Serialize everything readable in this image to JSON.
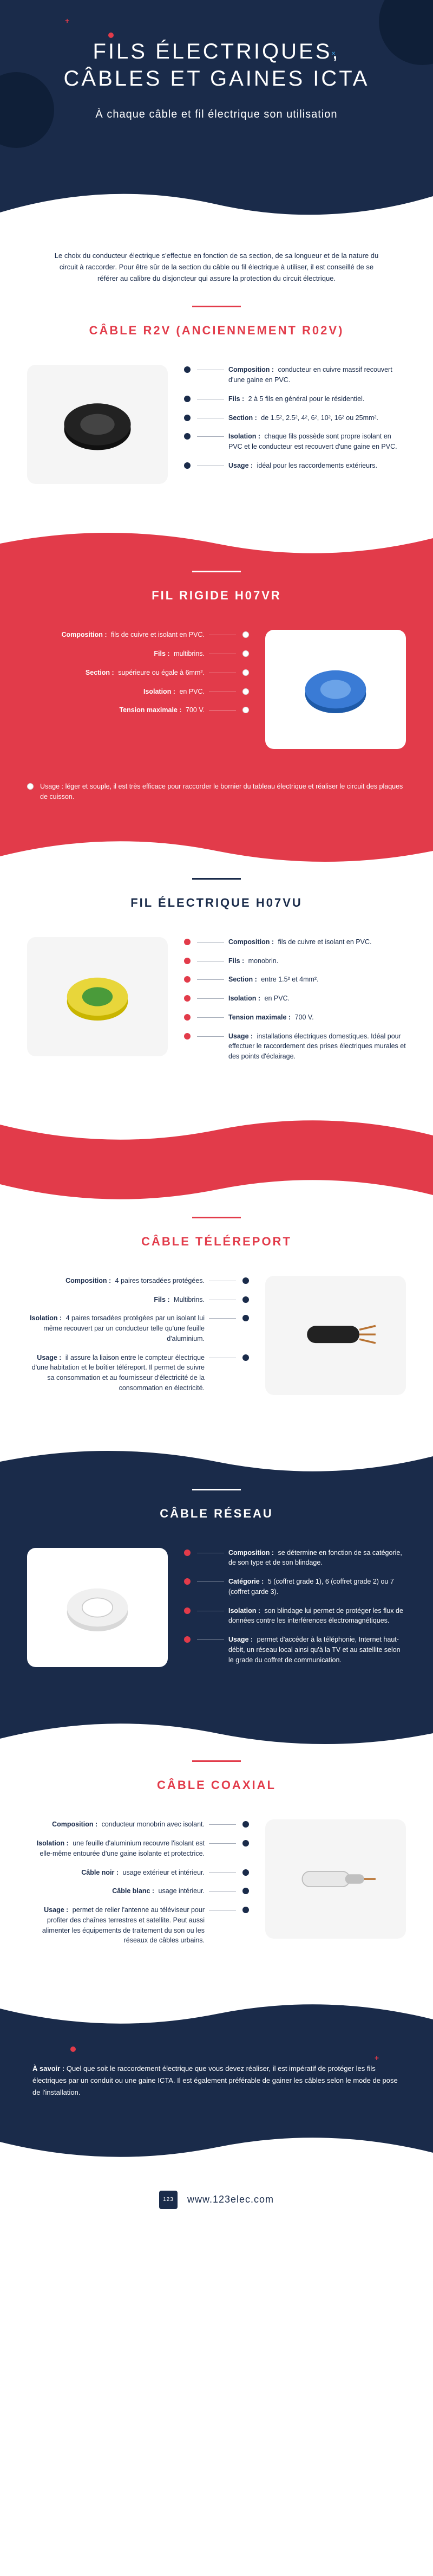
{
  "colors": {
    "darkblue": "#1a2b4a",
    "red": "#e23b4a",
    "lightblue": "#3aa0e8",
    "white": "#ffffff",
    "bg_light": "#f5f5f5"
  },
  "hero": {
    "title_line1": "FILS ÉLECTRIQUES,",
    "title_line2": "CÂBLES ET GAINES ICTA",
    "subtitle": "À chaque câble et fil électrique son utilisation"
  },
  "intro": "Le choix du conducteur électrique s'effectue en fonction de sa section, de sa longueur et de la nature du circuit à raccorder. Pour être sûr de la section du câble ou fil électrique à utiliser, il est conseillé de se référer au calibre du disjoncteur qui assure la protection du circuit électrique.",
  "cables": {
    "r2v": {
      "title": "CÂBLE R2V (ANCIENNEMENT R02V)",
      "image_alt": "cable-noir-r2v",
      "specs": [
        {
          "label": "Composition :",
          "text": "conducteur en cuivre massif recouvert d'une gaine en PVC."
        },
        {
          "label": "Fils :",
          "text": "2 à 5 fils en général pour le résidentiel."
        },
        {
          "label": "Section :",
          "text": "de 1.5², 2.5², 4², 6², 10², 16² ou 25mm²."
        },
        {
          "label": "Isolation :",
          "text": "chaque fils possède sont propre isolant en PVC et le conducteur est recouvert d'une gaine en PVC."
        },
        {
          "label": "Usage :",
          "text": "idéal pour les raccordements extérieurs."
        }
      ]
    },
    "h07vr": {
      "title": "FIL RIGIDE H07VR",
      "image_alt": "fil-bleu-h07vr",
      "specs": [
        {
          "label": "Composition :",
          "text": "fils de cuivre et isolant en PVC."
        },
        {
          "label": "Fils :",
          "text": "multibrins."
        },
        {
          "label": "Section :",
          "text": "supérieure ou égale à 6mm²."
        },
        {
          "label": "Isolation :",
          "text": "en PVC."
        },
        {
          "label": "Tension maximale :",
          "text": "700 V."
        }
      ],
      "usage": {
        "label": "Usage :",
        "text": "léger et souple, il est très efficace pour raccorder le bornier du tableau électrique et réaliser le circuit des plaques de cuisson."
      }
    },
    "h07vu": {
      "title": "FIL ÉLECTRIQUE H07VU",
      "image_alt": "fil-jaune-vert-h07vu",
      "specs": [
        {
          "label": "Composition :",
          "text": "fils de cuivre et isolant en PVC."
        },
        {
          "label": "Fils :",
          "text": "monobrin."
        },
        {
          "label": "Section :",
          "text": "entre 1.5² et 4mm²."
        },
        {
          "label": "Isolation :",
          "text": "en PVC."
        },
        {
          "label": "Tension maximale :",
          "text": "700 V."
        },
        {
          "label": "Usage :",
          "text": "installations électriques domestiques. Idéal pour effectuer le raccordement des prises électriques murales et des points d'éclairage."
        }
      ]
    },
    "telereport": {
      "title": "CÂBLE TÉLÉREPORT",
      "image_alt": "cable-telereport",
      "specs": [
        {
          "label": "Composition :",
          "text": "4 paires torsadées protégées."
        },
        {
          "label": "Fils :",
          "text": "Multibrins."
        },
        {
          "label": "Isolation :",
          "text": "4 paires torsadées protégées par un isolant lui même recouvert par un conducteur telle qu'une feuille d'aluminium."
        },
        {
          "label": "Usage :",
          "text": "il assure la liaison entre le compteur électrique d'une habitation et le boîtier téléreport. Il permet de suivre sa consommation et au fournisseur d'électricité de la consommation en électricité."
        }
      ]
    },
    "reseau": {
      "title": "CÂBLE RÉSEAU",
      "image_alt": "cable-reseau-blanc",
      "specs": [
        {
          "label": "Composition :",
          "text": "se détermine en fonction de sa catégorie, de son type et de son blindage."
        },
        {
          "label": "Catégorie :",
          "text": "5 (coffret grade 1), 6 (coffret grade 2) ou 7 (coffret garde 3)."
        },
        {
          "label": "Isolation :",
          "text": "son blindage lui permet de protéger les flux de données contre les interférences électromagnétiques."
        },
        {
          "label": "Usage :",
          "text": "permet d'accéder à la téléphonie, Internet haut-débit, un réseau local ainsi qu'à la TV et au satellite selon le grade du coffret de communication."
        }
      ]
    },
    "coaxial": {
      "title": "CÂBLE COAXIAL",
      "image_alt": "cable-coaxial",
      "specs": [
        {
          "label": "Composition :",
          "text": "conducteur monobrin avec isolant."
        },
        {
          "label": "Isolation :",
          "text": "une feuille d'aluminium recouvre l'isolant est elle-même entourée d'une gaine isolante et protectrice."
        },
        {
          "label": "Câble noir :",
          "text": "usage extérieur et intérieur."
        },
        {
          "label": "Câble blanc :",
          "text": "usage intérieur."
        },
        {
          "label": "Usage :",
          "text": "permet de relier l'antenne au téléviseur pour profiter des chaînes terrestres et satellite. Peut aussi alimenter les équipements de traitement du son ou les réseaux de câbles urbains."
        }
      ]
    }
  },
  "footer": {
    "label": "À savoir :",
    "text": "Quel que soit le raccordement électrique que vous devez réaliser, il est impératif de protéger les fils électriques par un conduit ou une gaine ICTA. Il est également préférable de gainer les câbles selon le mode de pose de l'installation."
  },
  "brand": {
    "logo_text": "123 ELEC",
    "url": "www.123elec.com"
  }
}
